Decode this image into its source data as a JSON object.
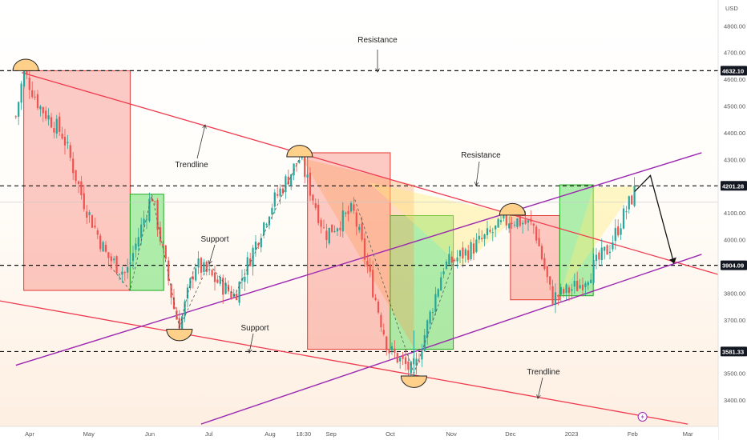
{
  "chart_data": {
    "type": "candlestick",
    "currency": "USD",
    "ylim": [
      3310,
      5020
    ],
    "y_ticks": [
      3400,
      3500,
      3600,
      3700,
      3800,
      3900,
      4000,
      4100,
      4200,
      4300,
      4400,
      4500,
      4600,
      4700,
      4800
    ],
    "x_ticks": [
      "Apr",
      "May",
      "Jun",
      "Jul",
      "Aug",
      "18:30",
      "Sep",
      "Oct",
      "Nov",
      "Dec",
      "2023",
      "Feb",
      "Mar"
    ],
    "x_range": [
      "2022-03-25",
      "2023-03-18"
    ],
    "levels": [
      {
        "value": 4632.1,
        "label": "4632.10"
      },
      {
        "value": 4201.28,
        "label": "4201.28"
      },
      {
        "value": 3904.09,
        "label": "3904.09"
      },
      {
        "value": 3581.33,
        "label": "3581.33"
      }
    ],
    "annotations": [
      "Resistance",
      "Trendline",
      "Support",
      "Support",
      "Resistance",
      "Trendline"
    ],
    "price_path": [
      {
        "date": "2022-03-25",
        "price": 4460
      },
      {
        "date": "2022-03-29",
        "price": 4630
      },
      {
        "date": "2022-04-06",
        "price": 4500
      },
      {
        "date": "2022-04-18",
        "price": 4390
      },
      {
        "date": "2022-04-28",
        "price": 4150
      },
      {
        "date": "2022-05-10",
        "price": 3940
      },
      {
        "date": "2022-05-20",
        "price": 3870
      },
      {
        "date": "2022-06-02",
        "price": 4170
      },
      {
        "date": "2022-06-13",
        "price": 3750
      },
      {
        "date": "2022-06-16",
        "price": 3670
      },
      {
        "date": "2022-06-24",
        "price": 3910
      },
      {
        "date": "2022-07-14",
        "price": 3790
      },
      {
        "date": "2022-08-01",
        "price": 4120
      },
      {
        "date": "2022-08-16",
        "price": 4305
      },
      {
        "date": "2022-08-29",
        "price": 4020
      },
      {
        "date": "2022-09-12",
        "price": 4110
      },
      {
        "date": "2022-09-30",
        "price": 3590
      },
      {
        "date": "2022-10-13",
        "price": 3500
      },
      {
        "date": "2022-10-28",
        "price": 3900
      },
      {
        "date": "2022-11-10",
        "price": 3960
      },
      {
        "date": "2022-12-01",
        "price": 4080
      },
      {
        "date": "2022-12-13",
        "price": 4050
      },
      {
        "date": "2022-12-22",
        "price": 3780
      },
      {
        "date": "2023-01-05",
        "price": 3830
      },
      {
        "date": "2023-01-20",
        "price": 3970
      },
      {
        "date": "2023-02-02",
        "price": 4180
      }
    ],
    "forecast_path": [
      {
        "date": "2023-02-02",
        "price": 4180
      },
      {
        "date": "2023-02-10",
        "price": 4240
      },
      {
        "date": "2023-02-22",
        "price": 3910
      }
    ]
  }
}
